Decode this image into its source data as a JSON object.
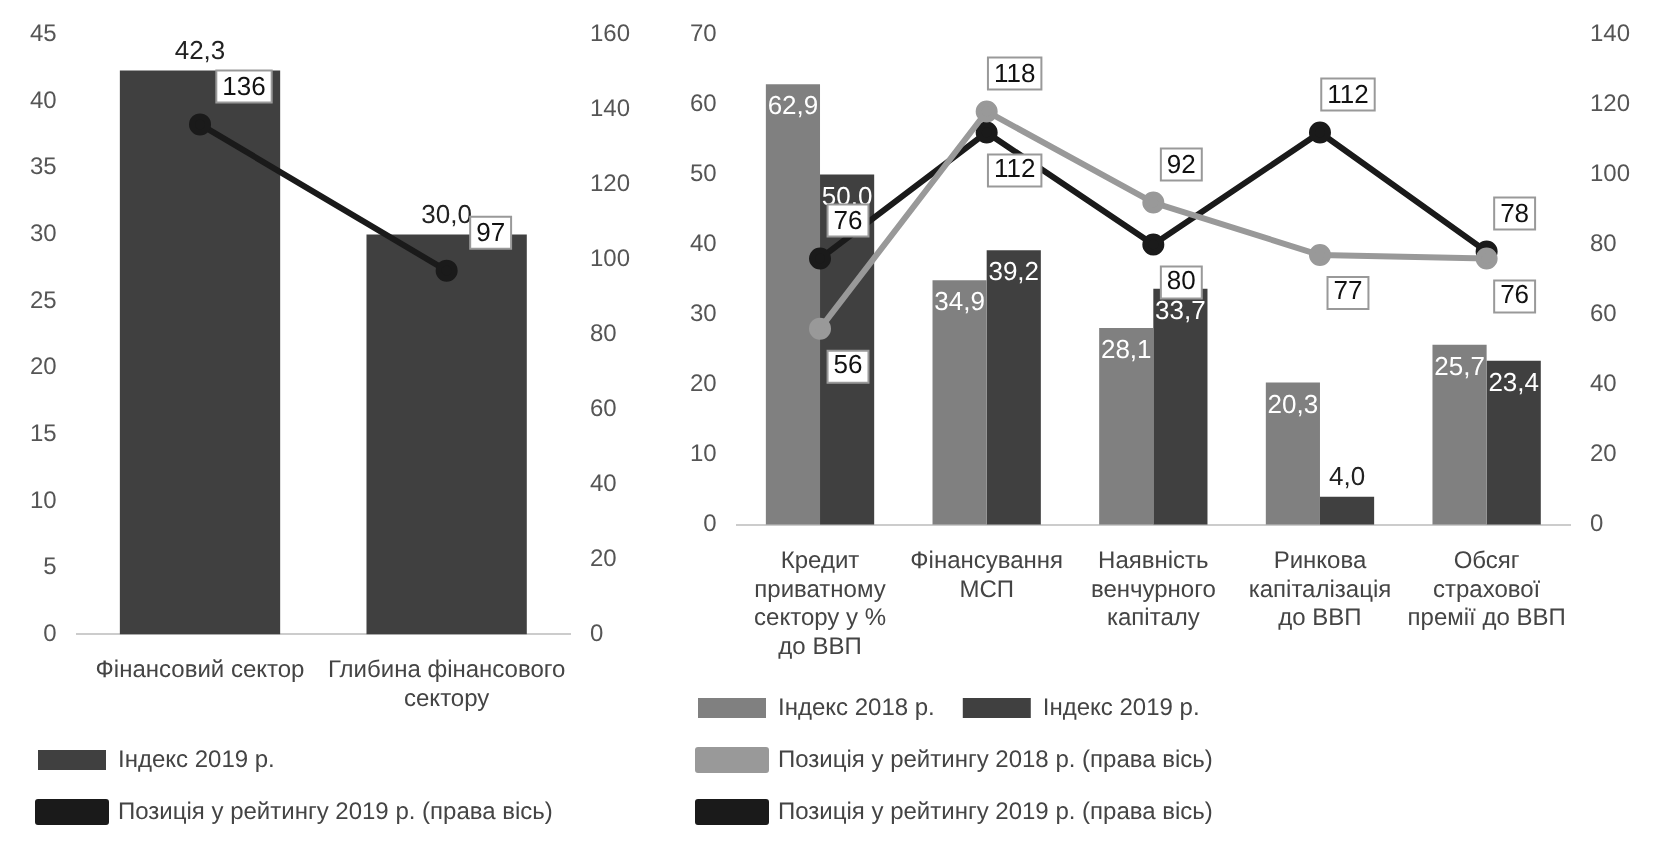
{
  "chart_data": [
    {
      "type": "bar",
      "categories": [
        "Фінансовий сектор",
        "Глибина фінансового сектору"
      ],
      "ylim": [
        0,
        45
      ],
      "yticks": [
        0,
        5,
        10,
        15,
        20,
        25,
        30,
        35,
        40,
        45
      ],
      "y2lim": [
        0,
        160
      ],
      "y2ticks": [
        0,
        20,
        40,
        60,
        80,
        100,
        120,
        140,
        160
      ],
      "legend": "bottom",
      "marker": "circle",
      "series": [
        {
          "name": "Індекс 2019 р.",
          "color": "#404040",
          "values": [
            42.3,
            30.0
          ],
          "value_labels": [
            "42,3",
            "30,0"
          ]
        },
        {
          "name": "Позиція у рейтингу 2019 р. (права вісь)",
          "type": "line",
          "axis": "y2",
          "color": "#1a1a1a",
          "values": [
            136,
            97
          ],
          "value_labels": [
            "136",
            "97"
          ]
        }
      ]
    },
    {
      "type": "bar",
      "categories": [
        "Кредит приватному сектору у % до ВВП",
        "Фінансування МСП",
        "Наявність венчурного капіталу",
        "Ринкова капіталізація до ВВП",
        "Обсяг страхової премії до ВВП"
      ],
      "ylim": [
        0,
        70
      ],
      "yticks": [
        0,
        10,
        20,
        30,
        40,
        50,
        60,
        70
      ],
      "y2lim": [
        0,
        140
      ],
      "y2ticks": [
        0,
        20,
        40,
        60,
        80,
        100,
        120,
        140
      ],
      "legend": "bottom",
      "marker": "circle",
      "series": [
        {
          "name": "Індекс 2018 р.",
          "color": "#808080",
          "values": [
            62.9,
            34.9,
            28.1,
            20.3,
            25.7
          ],
          "value_labels": [
            "62,9",
            "34,9",
            "28,1",
            "20,3",
            "25,7"
          ]
        },
        {
          "name": "Індекс 2019 р.",
          "color": "#404040",
          "values": [
            50.0,
            39.2,
            33.7,
            4.0,
            23.4
          ],
          "value_labels": [
            "50,0",
            "39,2",
            "33,7",
            "4,0",
            "23,4"
          ]
        },
        {
          "name": "Позиція у рейтингу 2018 р. (права вісь)",
          "type": "line",
          "axis": "y2",
          "color": "#999999",
          "values": [
            56,
            118,
            92,
            77,
            76
          ],
          "value_labels": [
            "56",
            "118",
            "92",
            "77",
            "76"
          ]
        },
        {
          "name": "Позиція у рейтингу 2019 р. (права вісь)",
          "type": "line",
          "axis": "y2",
          "color": "#1a1a1a",
          "values": [
            76,
            112,
            80,
            112,
            78
          ],
          "value_labels": [
            "76",
            "112",
            "80",
            "112",
            "78"
          ]
        }
      ]
    }
  ]
}
